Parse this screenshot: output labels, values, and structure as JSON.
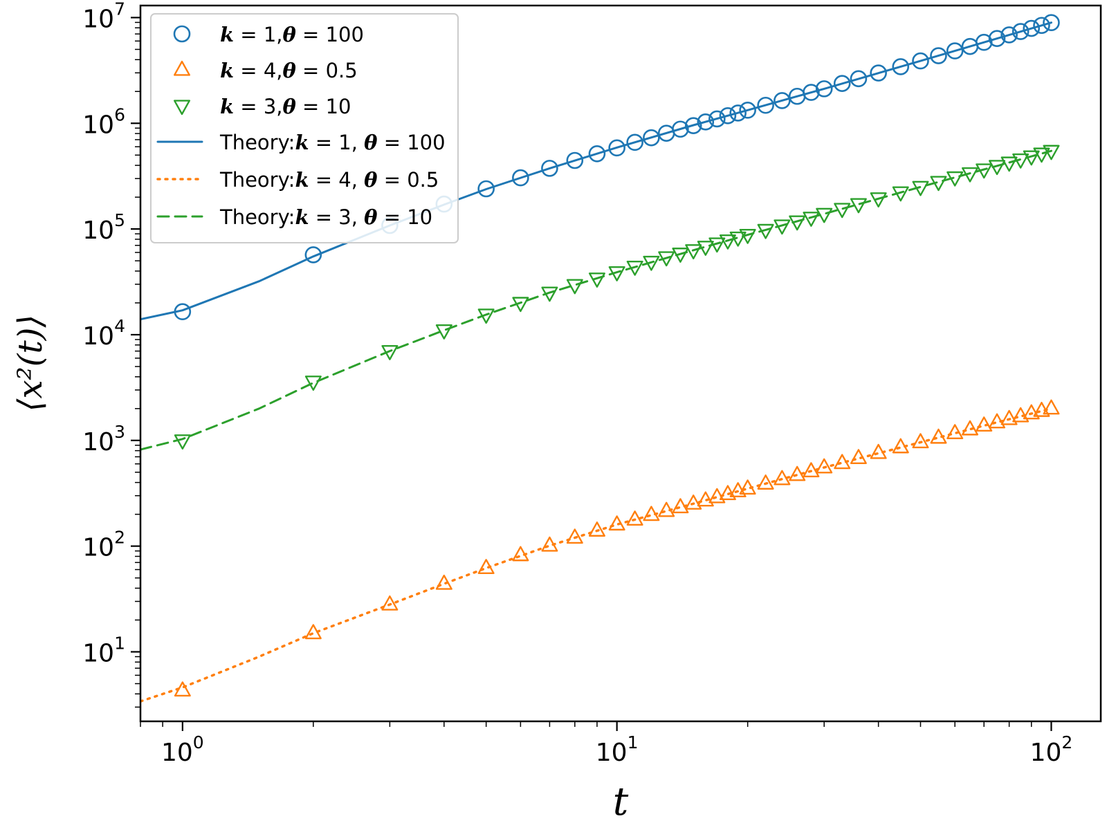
{
  "chart_data": {
    "type": "scatter",
    "title": "",
    "xlabel": "t",
    "ylabel": "⟨x²(t)⟩",
    "xscale": "log",
    "yscale": "log",
    "xlim": [
      0.8,
      130
    ],
    "ylim": [
      2.2,
      13000000
    ],
    "grid": false,
    "legend_position": "top-left",
    "x_ticks": [
      {
        "base": "10",
        "exp": "0",
        "value": 1
      },
      {
        "base": "10",
        "exp": "1",
        "value": 10
      },
      {
        "base": "10",
        "exp": "2",
        "value": 100
      }
    ],
    "y_ticks": [
      {
        "base": "10",
        "exp": "1",
        "value": 10
      },
      {
        "base": "10",
        "exp": "2",
        "value": 100
      },
      {
        "base": "10",
        "exp": "3",
        "value": 1000
      },
      {
        "base": "10",
        "exp": "4",
        "value": 10000
      },
      {
        "base": "10",
        "exp": "5",
        "value": 100000
      },
      {
        "base": "10",
        "exp": "6",
        "value": 1000000
      },
      {
        "base": "10",
        "exp": "7",
        "value": 10000000
      }
    ],
    "series": [
      {
        "name": "k = 1, θ = 100",
        "kind": "scatter",
        "marker": "circle",
        "color": "#1f77b4",
        "x": [
          1,
          2,
          3,
          4,
          5,
          6,
          7,
          8,
          9,
          10,
          11,
          12,
          13,
          14,
          15,
          16,
          17,
          18,
          19,
          20,
          22,
          24,
          26,
          28,
          30,
          33,
          36,
          40,
          45,
          50,
          55,
          60,
          65,
          70,
          75,
          80,
          85,
          90,
          95,
          100
        ],
        "y": [
          16500,
          57000,
          108000,
          172000,
          240000,
          305000,
          375000,
          445000,
          515000,
          585000,
          660000,
          730000,
          805000,
          880000,
          950000,
          1030000,
          1100000,
          1180000,
          1250000,
          1330000,
          1480000,
          1640000,
          1800000,
          1960000,
          2120000,
          2380000,
          2640000,
          2990000,
          3430000,
          3890000,
          4360000,
          4840000,
          5330000,
          5830000,
          6340000,
          6860000,
          7380000,
          7900000,
          8430000,
          8960000
        ]
      },
      {
        "name": "k = 4, θ = 0.5",
        "kind": "scatter",
        "marker": "triangle-up",
        "color": "#ff7f0e",
        "x": [
          1,
          2,
          3,
          4,
          5,
          6,
          7,
          8,
          9,
          10,
          11,
          12,
          13,
          14,
          15,
          16,
          17,
          18,
          19,
          20,
          22,
          24,
          26,
          28,
          30,
          33,
          36,
          40,
          45,
          50,
          55,
          60,
          65,
          70,
          75,
          80,
          85,
          90,
          95,
          100
        ],
        "y": [
          4.3,
          15,
          28,
          44,
          62,
          82,
          101,
          120,
          140,
          160,
          178,
          197,
          215,
          233,
          252,
          270,
          290,
          310,
          330,
          350,
          390,
          430,
          470,
          510,
          555,
          610,
          680,
          760,
          860,
          960,
          1060,
          1170,
          1270,
          1380,
          1480,
          1590,
          1690,
          1800,
          1900,
          2000
        ]
      },
      {
        "name": "k = 3, θ = 10",
        "kind": "scatter",
        "marker": "triangle-down",
        "color": "#2ca02c",
        "x": [
          1,
          2,
          3,
          4,
          5,
          6,
          7,
          8,
          9,
          10,
          11,
          12,
          13,
          14,
          15,
          16,
          17,
          18,
          19,
          20,
          22,
          24,
          26,
          28,
          30,
          33,
          36,
          40,
          45,
          50,
          55,
          60,
          65,
          70,
          75,
          80,
          85,
          90,
          95,
          100
        ],
        "y": [
          1000,
          3600,
          7000,
          11000,
          15500,
          20000,
          25000,
          29500,
          34000,
          39000,
          44000,
          49000,
          54000,
          58500,
          63000,
          68000,
          73000,
          78000,
          83000,
          88000,
          98000,
          108000,
          118000,
          128000,
          139000,
          155000,
          172000,
          195000,
          222000,
          250000,
          279000,
          308000,
          337000,
          366000,
          395000,
          425000,
          455000,
          486000,
          517000,
          548000
        ]
      },
      {
        "name": "Theory:k = 1, θ = 100",
        "kind": "line",
        "style": "solid",
        "color": "#1f77b4",
        "x": [
          0.8,
          1,
          1.5,
          2,
          3,
          4,
          5,
          7,
          10,
          15,
          20,
          30,
          50,
          70,
          100
        ],
        "y": [
          14000,
          17000,
          32000,
          55000,
          108000,
          170000,
          238000,
          375000,
          590000,
          960000,
          1330000,
          2120000,
          3890000,
          5830000,
          8960000
        ]
      },
      {
        "name": "Theory:k = 4, θ = 0.5",
        "kind": "line",
        "style": "dotted",
        "color": "#ff7f0e",
        "x": [
          0.8,
          1,
          1.5,
          2,
          3,
          4,
          5,
          7,
          10,
          15,
          20,
          30,
          50,
          70,
          100
        ],
        "y": [
          3.4,
          4.6,
          9,
          15,
          28,
          44,
          62,
          101,
          160,
          252,
          350,
          555,
          960,
          1380,
          2000
        ]
      },
      {
        "name": "Theory:k = 3, θ = 10",
        "kind": "line",
        "style": "dashed",
        "color": "#2ca02c",
        "x": [
          0.8,
          1,
          1.5,
          2,
          3,
          4,
          5,
          7,
          10,
          15,
          20,
          30,
          50,
          70,
          100
        ],
        "y": [
          820,
          1030,
          2000,
          3500,
          7000,
          11000,
          15500,
          25000,
          39000,
          63000,
          88000,
          139000,
          250000,
          366000,
          548000
        ]
      }
    ],
    "legend": [
      {
        "parts": [
          {
            "t": "k",
            "i": true
          },
          {
            "t": " = 1,",
            "i": false
          },
          {
            "t": "θ",
            "i": true
          },
          {
            "t": " = 100",
            "i": false
          }
        ]
      },
      {
        "parts": [
          {
            "t": "k",
            "i": true
          },
          {
            "t": " = 4,",
            "i": false
          },
          {
            "t": "θ",
            "i": true
          },
          {
            "t": " = 0.5",
            "i": false
          }
        ]
      },
      {
        "parts": [
          {
            "t": "k",
            "i": true
          },
          {
            "t": " = 3,",
            "i": false
          },
          {
            "t": "θ",
            "i": true
          },
          {
            "t": " = 10",
            "i": false
          }
        ]
      },
      {
        "parts": [
          {
            "t": "Theory:",
            "i": false
          },
          {
            "t": "k",
            "i": true
          },
          {
            "t": " = 1, ",
            "i": false
          },
          {
            "t": "θ",
            "i": true
          },
          {
            "t": " = 100",
            "i": false
          }
        ]
      },
      {
        "parts": [
          {
            "t": "Theory:",
            "i": false
          },
          {
            "t": "k",
            "i": true
          },
          {
            "t": " = 4, ",
            "i": false
          },
          {
            "t": "θ",
            "i": true
          },
          {
            "t": " = 0.5",
            "i": false
          }
        ]
      },
      {
        "parts": [
          {
            "t": "Theory:",
            "i": false
          },
          {
            "t": "k",
            "i": true
          },
          {
            "t": " = 3, ",
            "i": false
          },
          {
            "t": "θ",
            "i": true
          },
          {
            "t": " = 10",
            "i": false
          }
        ]
      }
    ]
  }
}
